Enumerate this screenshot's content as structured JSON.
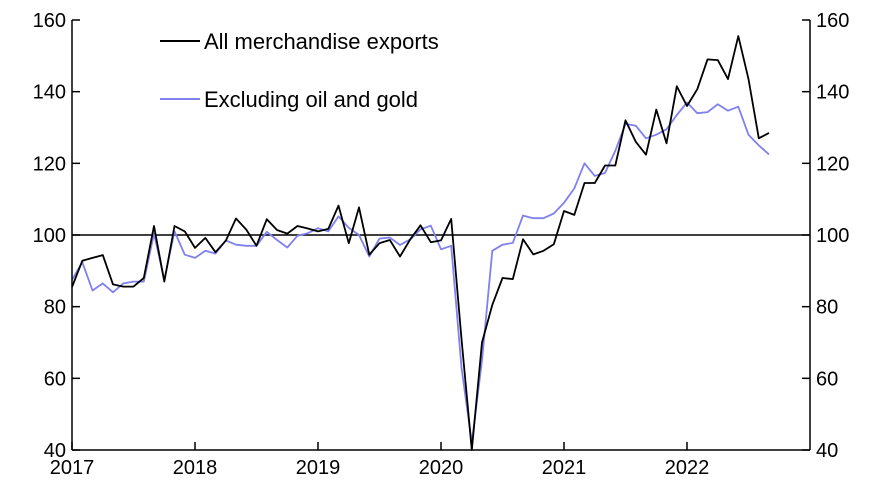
{
  "chart_data": {
    "type": "line",
    "title": "",
    "xlabel": "",
    "ylabel": "",
    "ylim": [
      40,
      160
    ],
    "yticks": [
      40,
      60,
      80,
      100,
      120,
      140,
      160
    ],
    "y_axes": "left and right, identical scale",
    "xlim": [
      "2017-01",
      "2023-01"
    ],
    "xticks": [
      "2017",
      "2018",
      "2019",
      "2020",
      "2021",
      "2022"
    ],
    "reference_line": 100,
    "grid": false,
    "legend_position": "top-left",
    "x_dates": [
      "2017-01",
      "2017-02",
      "2017-03",
      "2017-04",
      "2017-05",
      "2017-06",
      "2017-07",
      "2017-08",
      "2017-09",
      "2017-10",
      "2017-11",
      "2017-12",
      "2018-01",
      "2018-02",
      "2018-03",
      "2018-04",
      "2018-05",
      "2018-06",
      "2018-07",
      "2018-08",
      "2018-09",
      "2018-10",
      "2018-11",
      "2018-12",
      "2019-01",
      "2019-02",
      "2019-03",
      "2019-04",
      "2019-05",
      "2019-06",
      "2019-07",
      "2019-08",
      "2019-09",
      "2019-10",
      "2019-11",
      "2019-12",
      "2020-01",
      "2020-02",
      "2020-03",
      "2020-04",
      "2020-05",
      "2020-06",
      "2020-07",
      "2020-08",
      "2020-09",
      "2020-10",
      "2020-11",
      "2020-12",
      "2021-01",
      "2021-02",
      "2021-03",
      "2021-04",
      "2021-05",
      "2021-06",
      "2021-07",
      "2021-08",
      "2021-09",
      "2021-10",
      "2021-11",
      "2021-12",
      "2022-01",
      "2022-02",
      "2022-03",
      "2022-04",
      "2022-05",
      "2022-06",
      "2022-07",
      "2022-08",
      "2022-09"
    ],
    "series": [
      {
        "name": "All merchandise exports",
        "color": "#000000",
        "values": [
          85.5,
          92.8,
          93.6,
          94.4,
          86.2,
          85.6,
          85.6,
          88.0,
          102.5,
          87.0,
          102.5,
          101.0,
          96.4,
          99.2,
          95.2,
          98.4,
          104.6,
          101.5,
          97.0,
          104.4,
          101.4,
          100.4,
          102.5,
          101.8,
          101.0,
          101.7,
          108.2,
          97.7,
          107.7,
          94.5,
          97.7,
          98.6,
          94.0,
          98.8,
          102.7,
          98.0,
          98.5,
          104.5,
          71.0,
          40.0,
          70.0,
          80.5,
          88.0,
          87.7,
          98.8,
          94.6,
          95.6,
          97.4,
          106.7,
          105.6,
          114.5,
          114.5,
          119.4,
          119.4,
          132.0,
          126.0,
          122.4,
          135.0,
          125.6,
          141.5,
          136.0,
          140.7,
          149.0,
          148.8,
          143.5,
          155.5,
          143.5,
          127.0,
          128.5
        ]
      },
      {
        "name": "Excluding oil and gold",
        "color": "#8080f0",
        "values": [
          87.5,
          92.4,
          84.5,
          86.5,
          84.0,
          86.5,
          87.0,
          87.0,
          100.4,
          87.5,
          101.0,
          94.5,
          93.6,
          95.6,
          94.8,
          98.5,
          97.3,
          97.0,
          97.0,
          100.9,
          98.6,
          96.5,
          99.8,
          100.5,
          101.9,
          101.0,
          105.2,
          102.0,
          100.0,
          94.0,
          99.0,
          99.3,
          97.2,
          98.8,
          101.6,
          102.6,
          96.0,
          97.0,
          63.0,
          42.0,
          65.0,
          95.6,
          97.3,
          97.8,
          105.4,
          104.7,
          104.7,
          106.0,
          109.0,
          113.0,
          120.0,
          116.5,
          117.3,
          123.5,
          131.0,
          130.5,
          127.0,
          128.0,
          129.5,
          133.5,
          137.0,
          134.0,
          134.3,
          136.5,
          134.7,
          135.8,
          128.0,
          125.0,
          122.5
        ]
      }
    ]
  }
}
